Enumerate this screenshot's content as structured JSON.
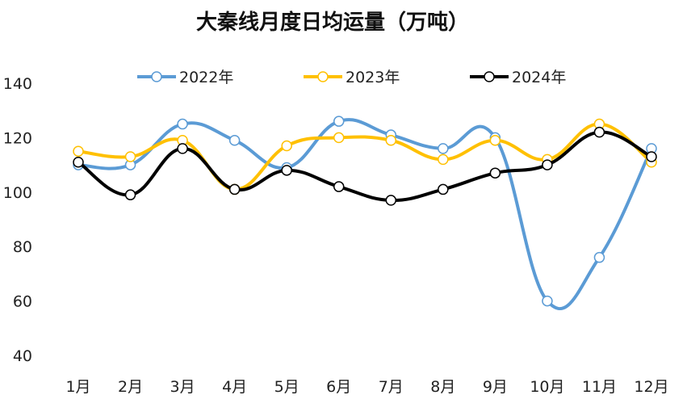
{
  "chart_data": {
    "type": "line",
    "title": "大秦线月度日均运量（万吨）",
    "xlabel": "",
    "ylabel": "",
    "categories": [
      "1月",
      "2月",
      "3月",
      "4月",
      "5月",
      "6月",
      "7月",
      "8月",
      "9月",
      "10月",
      "11月",
      "12月"
    ],
    "ylim": [
      40,
      140
    ],
    "yticks": [
      40,
      60,
      80,
      100,
      120,
      140
    ],
    "grid": false,
    "legend_position": "top",
    "series": [
      {
        "name": "2022年",
        "color": "#5B9BD5",
        "values": [
          110,
          110,
          125,
          119,
          109,
          126,
          121,
          116,
          120,
          60,
          76,
          116
        ]
      },
      {
        "name": "2023年",
        "color": "#FFC000",
        "values": [
          115,
          113,
          119,
          101,
          117,
          120,
          119,
          112,
          119,
          112,
          125,
          111
        ]
      },
      {
        "name": "2024年",
        "color": "#000000",
        "values": [
          111,
          99,
          116,
          101,
          108,
          102,
          97,
          101,
          107,
          110,
          122,
          113
        ]
      }
    ]
  }
}
